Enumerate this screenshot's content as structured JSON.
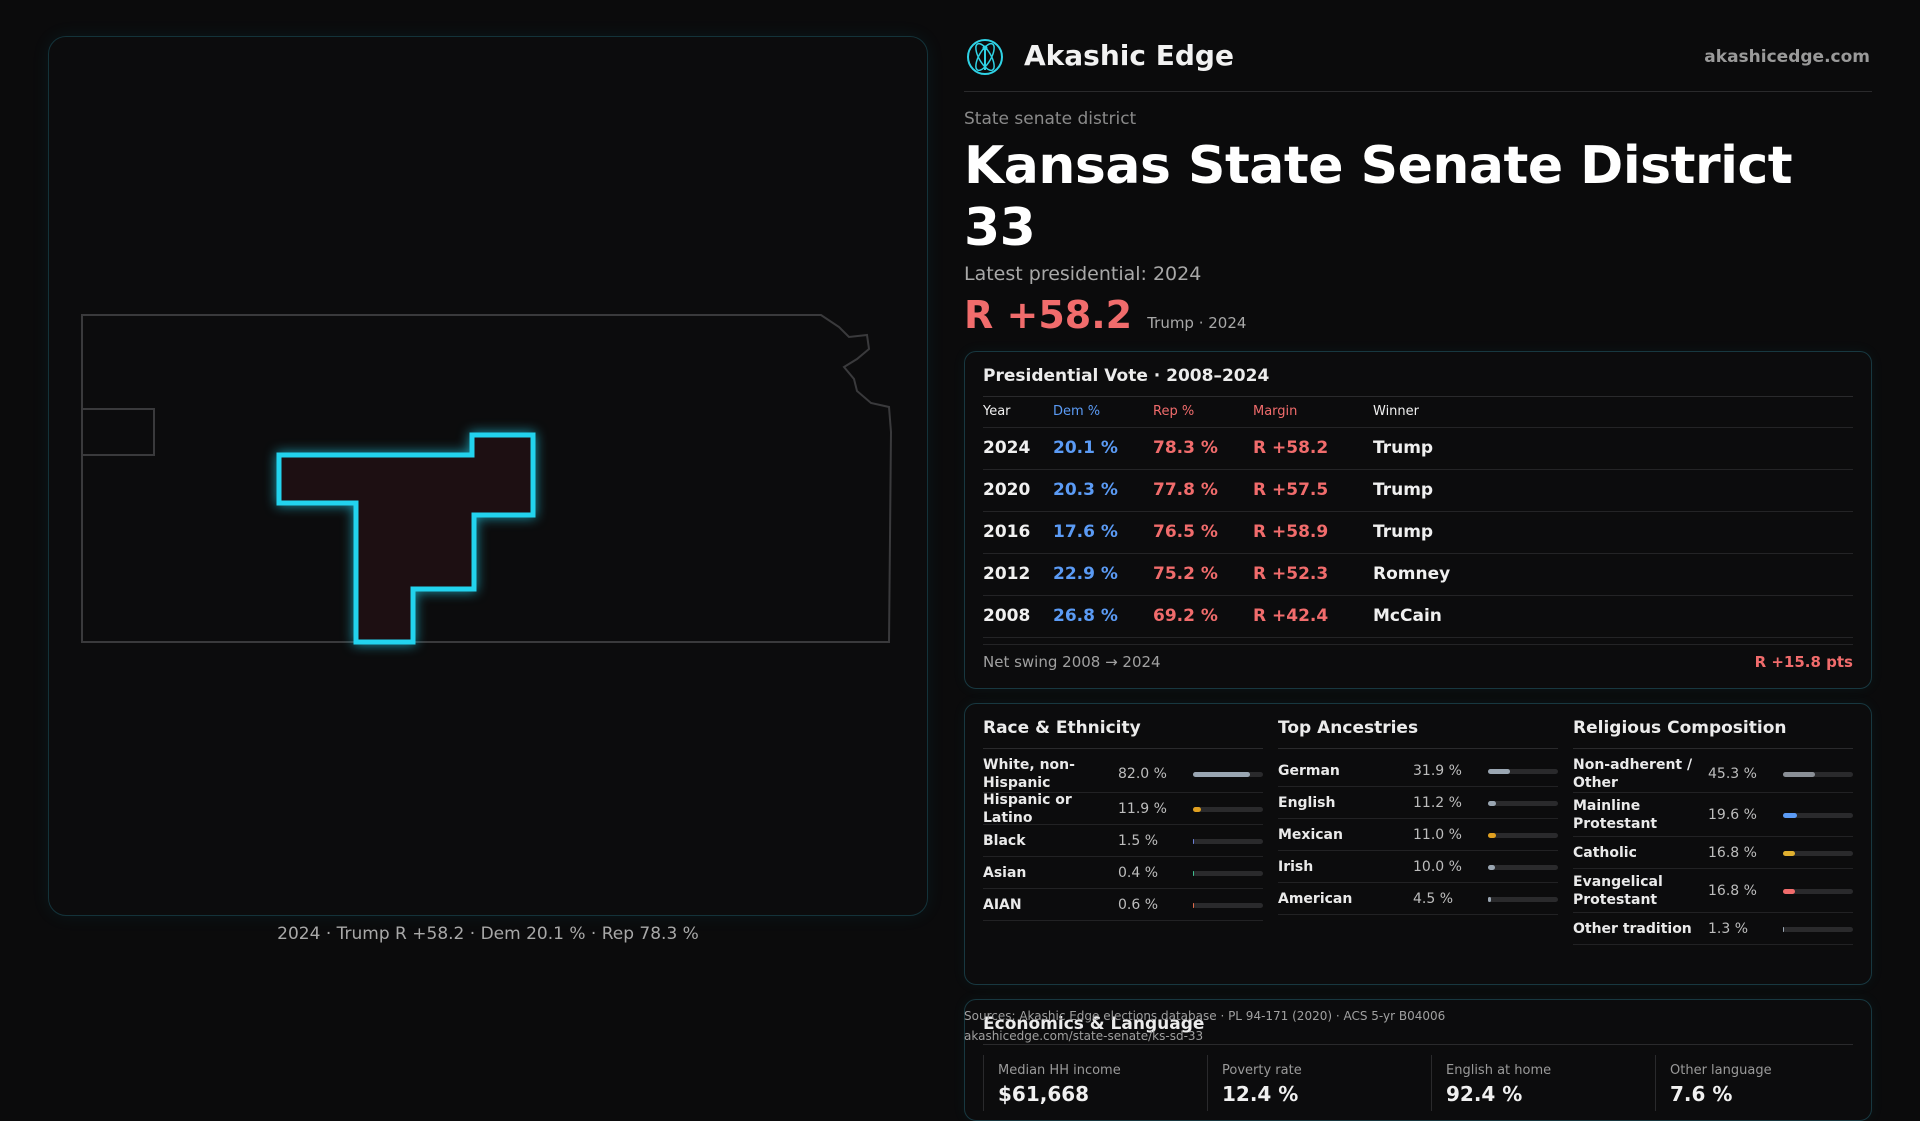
{
  "brand": {
    "name": "Akashic Edge",
    "url": "akashicedge.com",
    "logo_icon": "atom-tree-logo-icon",
    "accent": "#2fd3e6"
  },
  "district": {
    "kicker": "State senate district",
    "title": "Kansas State Senate District 33",
    "latest_label": "Latest presidential: 2024",
    "margin": "R +58.2",
    "margin_sub": "Trump · 2024"
  },
  "map": {
    "caption": "2024 · Trump R +58.2 · Dem 20.1 % · Rep 78.3 %",
    "highlight_color": "#22d3ee"
  },
  "presidential": {
    "title": "Presidential Vote · 2008–2024",
    "headers": [
      "Year",
      "Dem %",
      "Rep %",
      "Margin",
      "Winner"
    ],
    "rows": [
      [
        "2024",
        "20.1 %",
        "78.3 %",
        "R +58.2",
        "Trump"
      ],
      [
        "2020",
        "20.3 %",
        "77.8 %",
        "R +57.5",
        "Trump"
      ],
      [
        "2016",
        "17.6 %",
        "76.5 %",
        "R +58.9",
        "Trump"
      ],
      [
        "2012",
        "22.9 %",
        "75.2 %",
        "R +52.3",
        "Romney"
      ],
      [
        "2008",
        "26.8 %",
        "69.2 %",
        "R +42.4",
        "McCain"
      ]
    ],
    "swing_label": "Net swing 2008 → 2024",
    "swing_value": "R +15.8 pts"
  },
  "race": {
    "title": "Race & Ethnicity",
    "items": [
      {
        "label": "White, non-Hispanic",
        "pct": "82.0 %",
        "value": 82.0,
        "color": "#9aa6b2"
      },
      {
        "label": "Hispanic or Latino",
        "pct": "11.9 %",
        "value": 11.9,
        "color": "#e0a020"
      },
      {
        "label": "Black",
        "pct": "1.5 %",
        "value": 1.5,
        "color": "#6b7fd7"
      },
      {
        "label": "Asian",
        "pct": "0.4 %",
        "value": 0.4,
        "color": "#3fbf8f"
      },
      {
        "label": "AIAN",
        "pct": "0.6 %",
        "value": 0.6,
        "color": "#e06b4a"
      }
    ]
  },
  "ancestry": {
    "title": "Top Ancestries",
    "items": [
      {
        "label": "German",
        "pct": "31.9 %",
        "value": 31.9,
        "color": "#9aa6b2"
      },
      {
        "label": "English",
        "pct": "11.2 %",
        "value": 11.2,
        "color": "#9aa6b2"
      },
      {
        "label": "Mexican",
        "pct": "11.0 %",
        "value": 11.0,
        "color": "#e0a020"
      },
      {
        "label": "Irish",
        "pct": "10.0 %",
        "value": 10.0,
        "color": "#9aa6b2"
      },
      {
        "label": "American",
        "pct": "4.5 %",
        "value": 4.5,
        "color": "#9aa6b2"
      }
    ]
  },
  "religion": {
    "title": "Religious Composition",
    "items": [
      {
        "label": "Non-adherent / Other",
        "pct": "45.3 %",
        "value": 45.3,
        "color": "#8a8f96"
      },
      {
        "label": "Mainline Protestant",
        "pct": "19.6 %",
        "value": 19.6,
        "color": "#5b9bf5"
      },
      {
        "label": "Catholic",
        "pct": "16.8 %",
        "value": 16.8,
        "color": "#e0b030"
      },
      {
        "label": "Evangelical Protestant",
        "pct": "16.8 %",
        "value": 16.8,
        "color": "#f16c6c"
      },
      {
        "label": "Other tradition",
        "pct": "1.3 %",
        "value": 1.3,
        "color": "#9aa6b2"
      }
    ]
  },
  "economics": {
    "title": "Economics & Language",
    "cells": [
      {
        "label": "Median HH income",
        "value": "$61,668"
      },
      {
        "label": "Poverty rate",
        "value": "12.4 %"
      },
      {
        "label": "English at home",
        "value": "92.4 %"
      },
      {
        "label": "Other language",
        "value": "7.6 %"
      }
    ]
  },
  "source": {
    "line1": "Sources: Akashic Edge elections database · PL 94-171 (2020) · ACS 5-yr B04006",
    "line2": "akashicedge.com/state-senate/ks-sd-33"
  }
}
